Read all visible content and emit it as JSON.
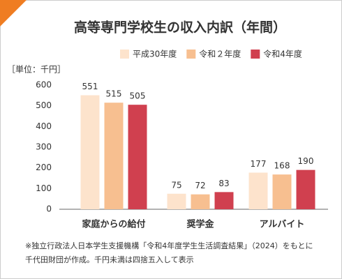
{
  "chart_data": {
    "type": "bar",
    "title": "高等専門学校生の収入内訳（年間）",
    "y_label": "［単位：千円］",
    "categories": [
      "家庭からの給付",
      "奨学金",
      "アルバイト"
    ],
    "series": [
      {
        "name": "平成30年度",
        "color": "#fde3cc",
        "values": [
          551,
          75,
          177
        ]
      },
      {
        "name": "令和２年度",
        "color": "#f7bf90",
        "values": [
          515,
          72,
          168
        ]
      },
      {
        "name": "令和4年度",
        "color": "#d0404f",
        "values": [
          505,
          83,
          190
        ]
      }
    ],
    "ylim": [
      0,
      600
    ],
    "yticks": [
      0,
      100,
      200,
      300,
      400,
      500,
      600
    ],
    "grid": false,
    "legend": "top-right",
    "notes": [
      "※独立行政法人日本学生支援機構「令和4年度学生生活調査結果」（2024）をもとに",
      "千代田財団が作成。千円未満は四捨五入して表示"
    ]
  }
}
